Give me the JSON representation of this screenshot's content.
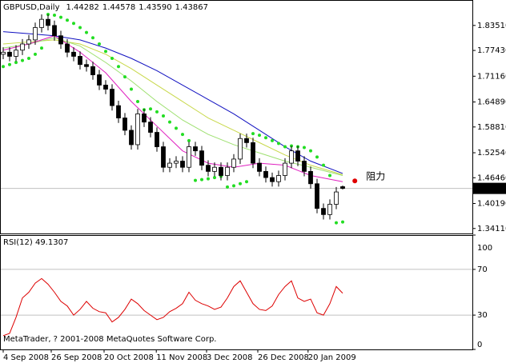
{
  "chart_data": [
    {
      "type": "candlestick",
      "title": "GBPUSD,Daily",
      "ohlc_header": [
        "1.44282",
        "1.44578",
        "1.43590",
        "1.43867"
      ],
      "open": [
        1.765,
        1.77,
        1.76,
        1.775,
        1.79,
        1.8,
        1.83,
        1.85,
        1.835,
        1.81,
        1.79,
        1.77,
        1.76,
        1.74,
        1.735,
        1.715,
        1.69,
        1.68,
        1.64,
        1.61,
        1.58,
        1.545,
        1.62,
        1.6,
        1.575,
        1.54,
        1.49,
        1.5,
        1.505,
        1.49,
        1.54,
        1.53,
        1.495,
        1.48,
        1.49,
        1.47,
        1.49,
        1.51,
        1.56,
        1.55,
        1.5,
        1.48,
        1.465,
        1.455,
        1.47,
        1.5,
        1.53,
        1.505,
        1.48,
        1.45,
        1.39,
        1.375,
        1.4,
        1.44282
      ],
      "high": [
        1.782,
        1.782,
        1.787,
        1.802,
        1.812,
        1.842,
        1.862,
        1.862,
        1.847,
        1.822,
        1.802,
        1.782,
        1.772,
        1.752,
        1.747,
        1.727,
        1.702,
        1.692,
        1.652,
        1.622,
        1.592,
        1.632,
        1.632,
        1.612,
        1.587,
        1.552,
        1.512,
        1.517,
        1.517,
        1.552,
        1.552,
        1.542,
        1.507,
        1.502,
        1.502,
        1.502,
        1.522,
        1.572,
        1.572,
        1.562,
        1.512,
        1.492,
        1.477,
        1.482,
        1.512,
        1.542,
        1.542,
        1.517,
        1.492,
        1.462,
        1.402,
        1.412,
        1.442,
        1.44578
      ],
      "low": [
        1.753,
        1.748,
        1.748,
        1.763,
        1.778,
        1.788,
        1.818,
        1.823,
        1.798,
        1.778,
        1.758,
        1.748,
        1.728,
        1.723,
        1.703,
        1.678,
        1.668,
        1.628,
        1.598,
        1.568,
        1.533,
        1.533,
        1.588,
        1.563,
        1.528,
        1.478,
        1.478,
        1.488,
        1.478,
        1.478,
        1.518,
        1.483,
        1.468,
        1.468,
        1.458,
        1.458,
        1.478,
        1.498,
        1.538,
        1.488,
        1.468,
        1.453,
        1.443,
        1.443,
        1.458,
        1.488,
        1.493,
        1.468,
        1.438,
        1.378,
        1.363,
        1.363,
        1.388,
        1.4359
      ],
      "close": [
        1.77,
        1.76,
        1.775,
        1.79,
        1.8,
        1.83,
        1.85,
        1.835,
        1.81,
        1.79,
        1.77,
        1.76,
        1.74,
        1.735,
        1.715,
        1.69,
        1.68,
        1.64,
        1.61,
        1.58,
        1.545,
        1.62,
        1.6,
        1.575,
        1.54,
        1.49,
        1.5,
        1.505,
        1.49,
        1.54,
        1.53,
        1.495,
        1.48,
        1.49,
        1.47,
        1.49,
        1.51,
        1.56,
        1.55,
        1.5,
        1.48,
        1.465,
        1.455,
        1.47,
        1.5,
        1.53,
        1.505,
        1.48,
        1.45,
        1.39,
        1.375,
        1.4,
        1.43,
        1.43867
      ],
      "series": [
        {
          "style": "line",
          "color": "#1010c0",
          "x": [
            0,
            4,
            8,
            12,
            16,
            20,
            24,
            28,
            32,
            36,
            40,
            44,
            48,
            53
          ],
          "values": [
            1.82,
            1.815,
            1.81,
            1.8,
            1.78,
            1.755,
            1.725,
            1.69,
            1.655,
            1.62,
            1.58,
            1.54,
            1.505,
            1.475
          ]
        },
        {
          "style": "line",
          "color": "#c8d84a",
          "x": [
            0,
            4,
            8,
            12,
            16,
            20,
            24,
            28,
            32,
            36,
            40,
            44,
            48,
            53
          ],
          "values": [
            1.79,
            1.795,
            1.8,
            1.79,
            1.765,
            1.73,
            1.69,
            1.65,
            1.61,
            1.58,
            1.55,
            1.52,
            1.495,
            1.472
          ]
        },
        {
          "style": "line",
          "color": "#9ee070",
          "x": [
            0,
            4,
            8,
            12,
            16,
            20,
            24,
            28,
            32,
            36,
            40,
            44,
            48,
            53
          ],
          "values": [
            1.78,
            1.79,
            1.805,
            1.785,
            1.745,
            1.7,
            1.65,
            1.605,
            1.57,
            1.545,
            1.525,
            1.505,
            1.49,
            1.47
          ]
        },
        {
          "style": "line",
          "color": "#e020c0",
          "x": [
            0,
            4,
            8,
            12,
            16,
            20,
            24,
            28,
            32,
            36,
            40,
            44,
            48,
            53
          ],
          "values": [
            1.775,
            1.79,
            1.81,
            1.77,
            1.72,
            1.65,
            1.59,
            1.53,
            1.5,
            1.49,
            1.5,
            1.495,
            1.47,
            1.455
          ]
        },
        {
          "style": "dots",
          "color": "#22dd22",
          "values": [
            1.735,
            1.74,
            1.745,
            1.75,
            1.755,
            1.765,
            1.78,
            1.862,
            1.86,
            1.855,
            1.848,
            1.84,
            1.83,
            1.818,
            1.805,
            1.79,
            1.772,
            1.755,
            1.735,
            1.71,
            1.68,
            1.65,
            1.63,
            1.632,
            1.625,
            1.615,
            1.6,
            1.585,
            1.57,
            1.555,
            1.458,
            1.46,
            1.462,
            1.465,
            1.468,
            1.442,
            1.445,
            1.45,
            1.455,
            1.572,
            1.568,
            1.562,
            1.555,
            1.548,
            1.54,
            1.542,
            1.54,
            1.538,
            1.53,
            1.515,
            1.495,
            1.47,
            1.355,
            1.357
          ]
        }
      ],
      "current_price": {
        "value": 1.43867,
        "label": "1.43867"
      },
      "annotation": {
        "text": "阻力",
        "x": 54.9,
        "value": 1.457,
        "color": "#e020c0",
        "dot_color": "#e00000"
      },
      "xlim": [
        -0.5,
        73.25
      ],
      "ylim": [
        1.329,
        1.897
      ],
      "yticks": [
        {
          "value": 1.8351,
          "label": "1.83510"
        },
        {
          "value": 1.7743,
          "label": "1.77430"
        },
        {
          "value": 1.7116,
          "label": "1.71160"
        },
        {
          "value": 1.6489,
          "label": "1.64890"
        },
        {
          "value": 1.5881,
          "label": "1.58810"
        },
        {
          "value": 1.5254,
          "label": "1.52540"
        },
        {
          "value": 1.4646,
          "label": "1.46460"
        },
        {
          "value": 1.4019,
          "label": "1.40190"
        },
        {
          "value": 1.3411,
          "label": "1.34110"
        }
      ],
      "xticks": [
        {
          "value": 0,
          "label": "4 Sep 2008"
        },
        {
          "value": 7.5,
          "label": "26 Sep 2008"
        },
        {
          "value": 15.75,
          "label": "20 Oct 2008"
        },
        {
          "value": 23.9,
          "label": "11 Nov 2008"
        },
        {
          "value": 31.75,
          "label": "3 Dec 2008"
        },
        {
          "value": 39.75,
          "label": "26 Dec 2008"
        },
        {
          "value": 47.6,
          "label": "20 Jan 2009"
        }
      ]
    },
    {
      "type": "line",
      "title": "RSI(12) 49.1307",
      "color": "#dd0000",
      "values": [
        12,
        14,
        28,
        45,
        50,
        58,
        62,
        57,
        50,
        42,
        38,
        30,
        35,
        42,
        36,
        33,
        32,
        24,
        28,
        35,
        44,
        40,
        34,
        30,
        26,
        28,
        33,
        36,
        40,
        50,
        43,
        40,
        38,
        35,
        37,
        45,
        55,
        60,
        50,
        40,
        35,
        34,
        38,
        48,
        55,
        60,
        45,
        42,
        44,
        32,
        30,
        40,
        55,
        49.1307
      ],
      "xlim": [
        -0.5,
        73.25
      ],
      "ylim": [
        0,
        100
      ],
      "yticks": [
        0,
        30,
        70,
        100
      ],
      "levels": [
        30,
        70
      ]
    }
  ],
  "footer": "MetaTrader, ? 2001-2008 MetaQuotes Software Corp."
}
